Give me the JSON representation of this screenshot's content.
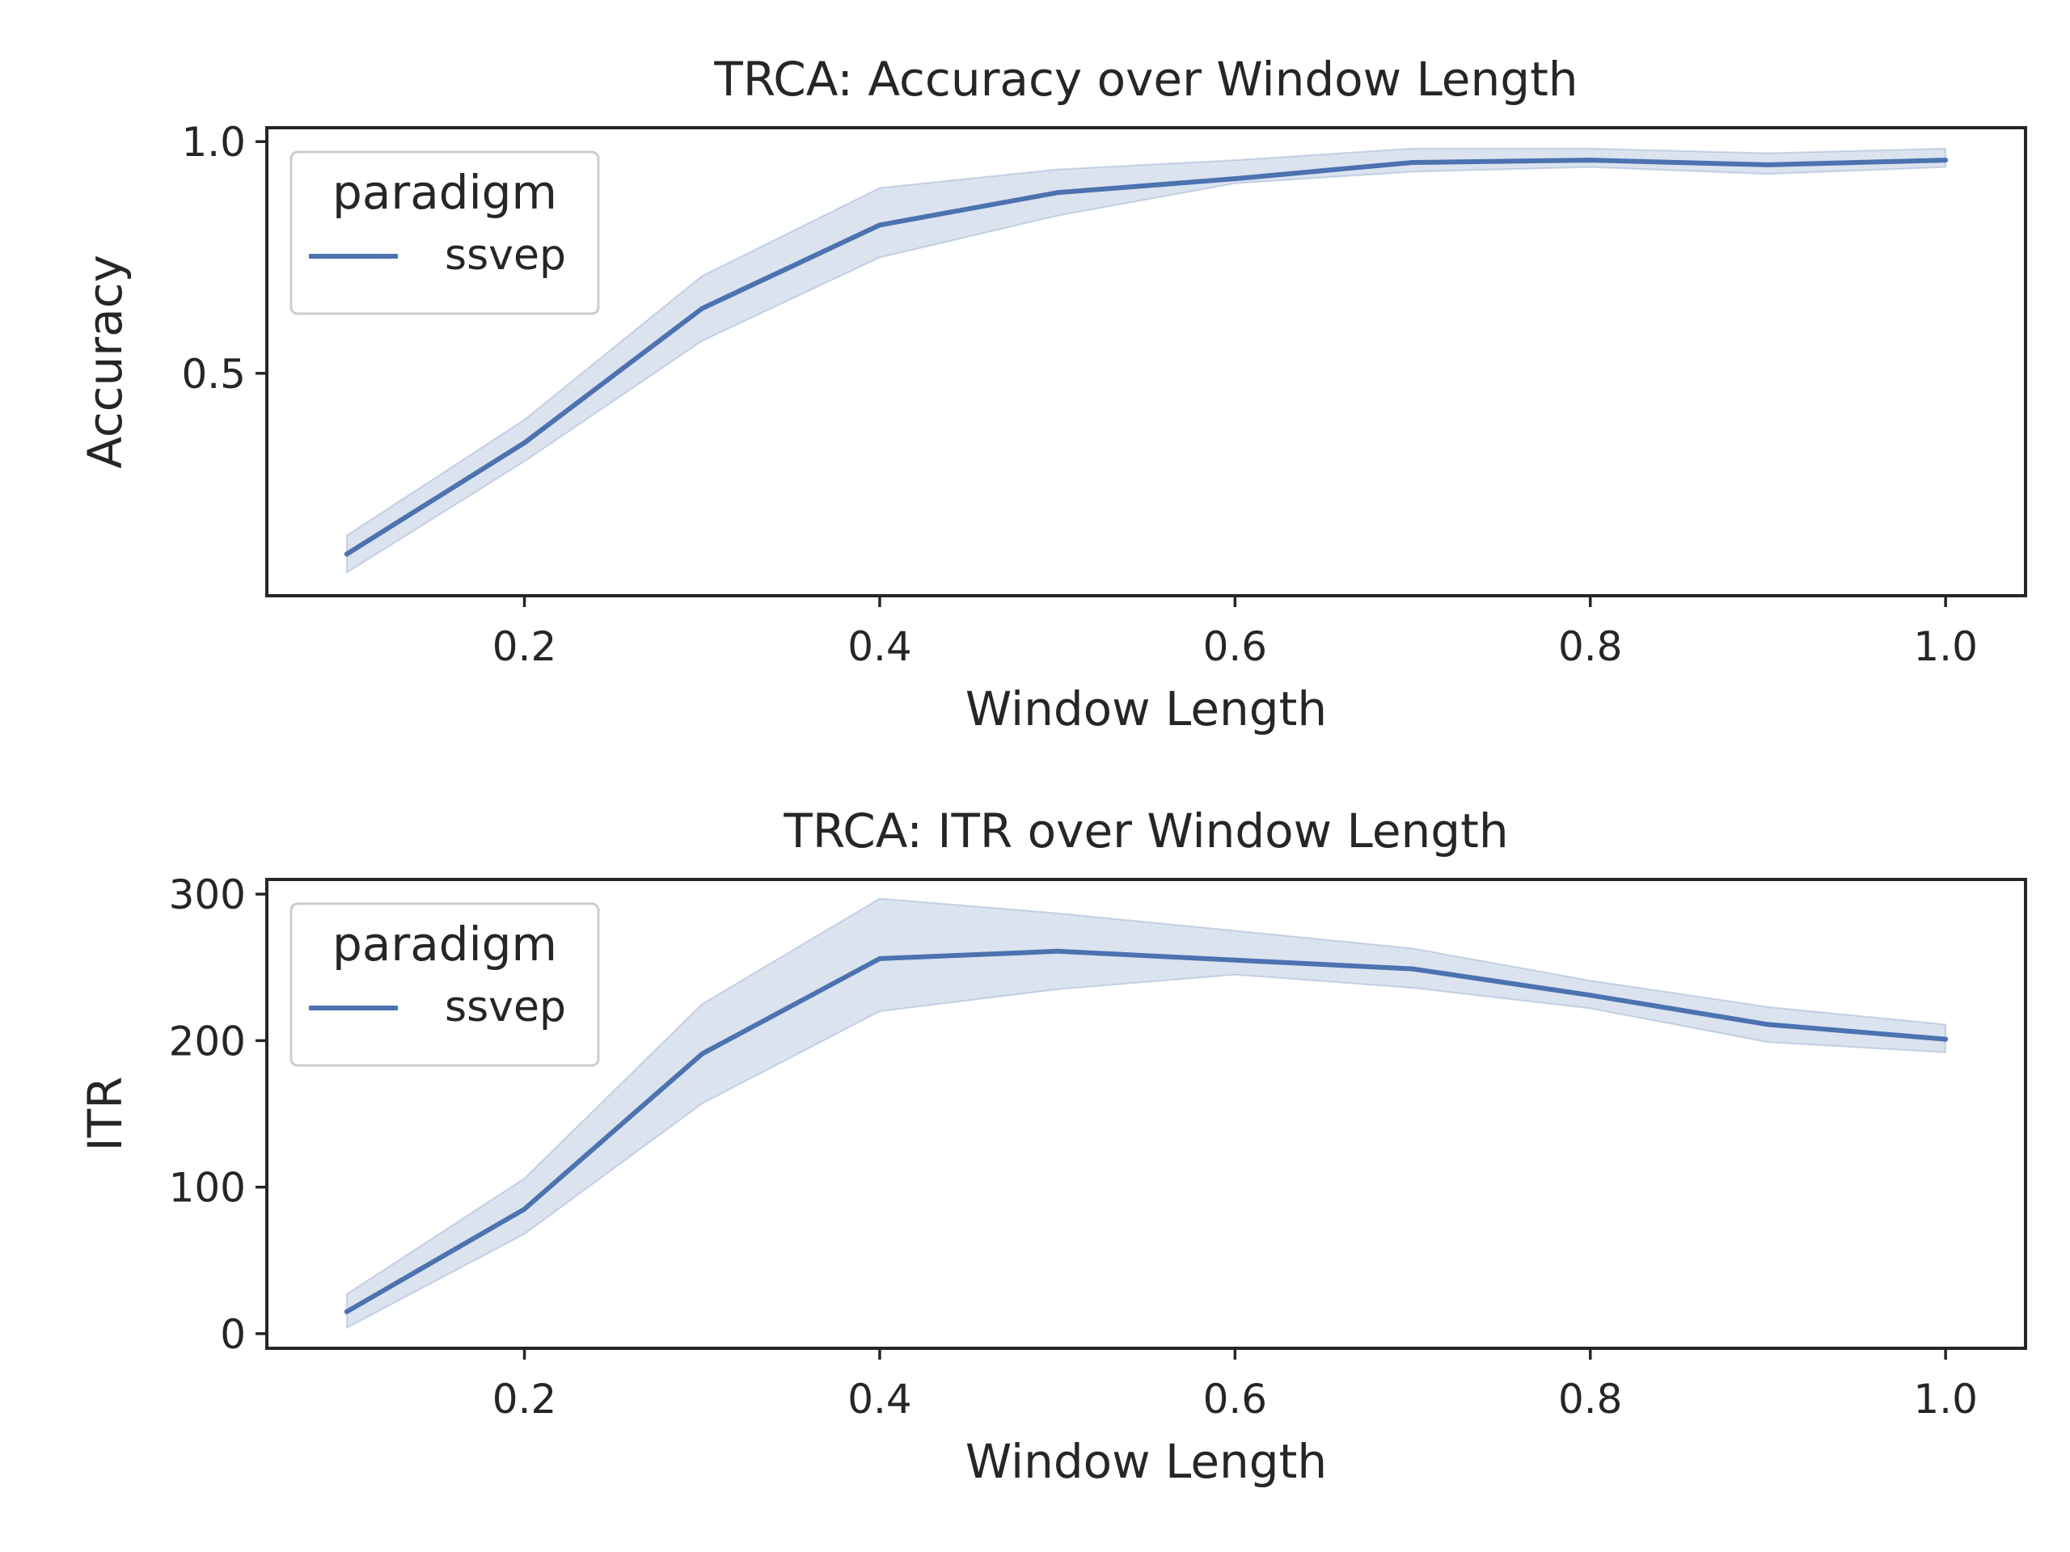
{
  "chart_data": [
    {
      "type": "line",
      "title": "TRCA: Accuracy over Window Length",
      "xlabel": "Window Length",
      "ylabel": "Accuracy",
      "xlim": [
        0.055,
        1.045
      ],
      "ylim": [
        0.02,
        1.03
      ],
      "x_ticks": [
        "0.2",
        "0.4",
        "0.6",
        "0.8",
        "1.0"
      ],
      "x_tick_values": [
        0.2,
        0.4,
        0.6,
        0.8,
        1.0
      ],
      "y_ticks": [
        "0.5",
        "1.0"
      ],
      "y_tick_values": [
        0.5,
        1.0
      ],
      "grid": false,
      "legend": {
        "title": "paradigm",
        "position": "top-left",
        "entries": [
          "ssvep"
        ]
      },
      "series": [
        {
          "name": "ssvep",
          "color": "#4c72b0",
          "x": [
            0.1,
            0.2,
            0.3,
            0.4,
            0.5,
            0.6,
            0.7,
            0.8,
            0.9,
            1.0
          ],
          "y": [
            0.11,
            0.35,
            0.64,
            0.82,
            0.89,
            0.92,
            0.955,
            0.96,
            0.95,
            0.96
          ],
          "ci_low": [
            0.07,
            0.31,
            0.57,
            0.75,
            0.84,
            0.91,
            0.935,
            0.945,
            0.93,
            0.945
          ],
          "ci_high": [
            0.15,
            0.4,
            0.71,
            0.9,
            0.94,
            0.96,
            0.985,
            0.985,
            0.975,
            0.985
          ]
        }
      ]
    },
    {
      "type": "line",
      "title": "TRCA: ITR over Window Length",
      "xlabel": "Window Length",
      "ylabel": "ITR",
      "xlim": [
        0.055,
        1.045
      ],
      "ylim": [
        -10,
        310
      ],
      "x_ticks": [
        "0.2",
        "0.4",
        "0.6",
        "0.8",
        "1.0"
      ],
      "x_tick_values": [
        0.2,
        0.4,
        0.6,
        0.8,
        1.0
      ],
      "y_ticks": [
        "0",
        "100",
        "200",
        "300"
      ],
      "y_tick_values": [
        0,
        100,
        200,
        300
      ],
      "grid": false,
      "legend": {
        "title": "paradigm",
        "position": "top-left",
        "entries": [
          "ssvep"
        ]
      },
      "series": [
        {
          "name": "ssvep",
          "color": "#4c72b0",
          "x": [
            0.1,
            0.2,
            0.3,
            0.4,
            0.5,
            0.6,
            0.7,
            0.8,
            0.9,
            1.0
          ],
          "y": [
            15,
            85,
            191,
            256,
            261,
            255,
            249,
            231,
            211,
            201
          ],
          "ci_low": [
            4,
            68,
            157,
            220,
            235,
            245,
            236,
            222,
            199,
            192
          ],
          "ci_high": [
            27,
            106,
            225,
            297,
            287,
            275,
            263,
            241,
            223,
            211
          ]
        }
      ]
    }
  ]
}
